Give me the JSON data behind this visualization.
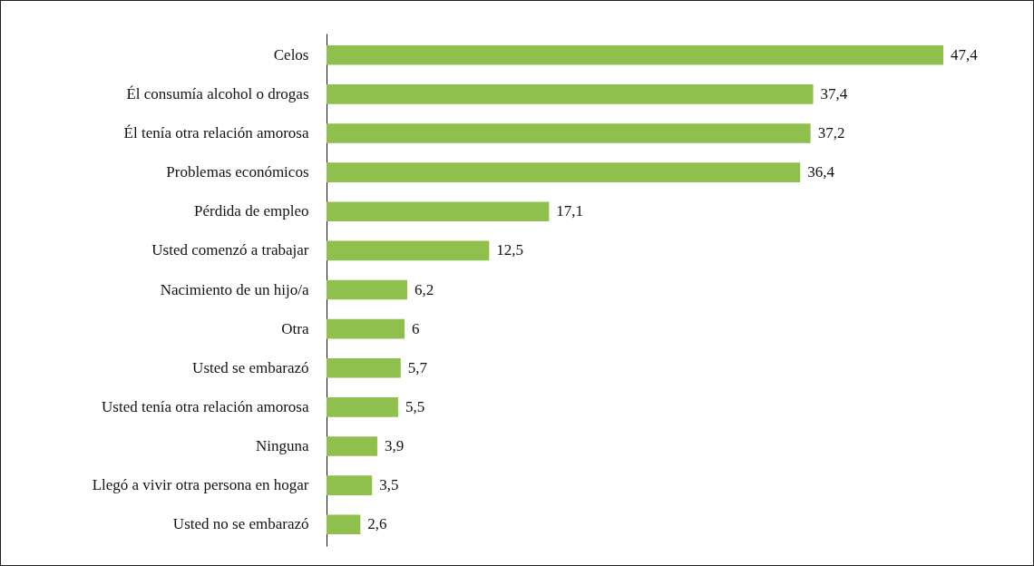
{
  "chart_data": {
    "type": "bar",
    "orientation": "horizontal",
    "categories": [
      "Celos",
      "Él consumía alcohol o drogas",
      "Él tenía otra relación amorosa",
      "Problemas económicos",
      "Pérdida de empleo",
      "Usted comenzó a trabajar",
      "Nacimiento de un hijo/a",
      "Otra",
      "Usted se embarazó",
      "Usted tenía otra relación amorosa",
      "Ninguna",
      "Llegó a vivir otra persona en hogar",
      "Usted no se embarazó"
    ],
    "values": [
      47.4,
      37.4,
      37.2,
      36.4,
      17.1,
      12.5,
      6.2,
      6,
      5.7,
      5.5,
      3.9,
      3.5,
      2.6
    ],
    "value_labels": [
      "47,4",
      "37,4",
      "37,2",
      "36,4",
      "17,1",
      "12,5",
      "6,2",
      "6",
      "5,7",
      "5,5",
      "3,9",
      "3,5",
      "2,6"
    ],
    "color": "#8fbf4d"
  }
}
